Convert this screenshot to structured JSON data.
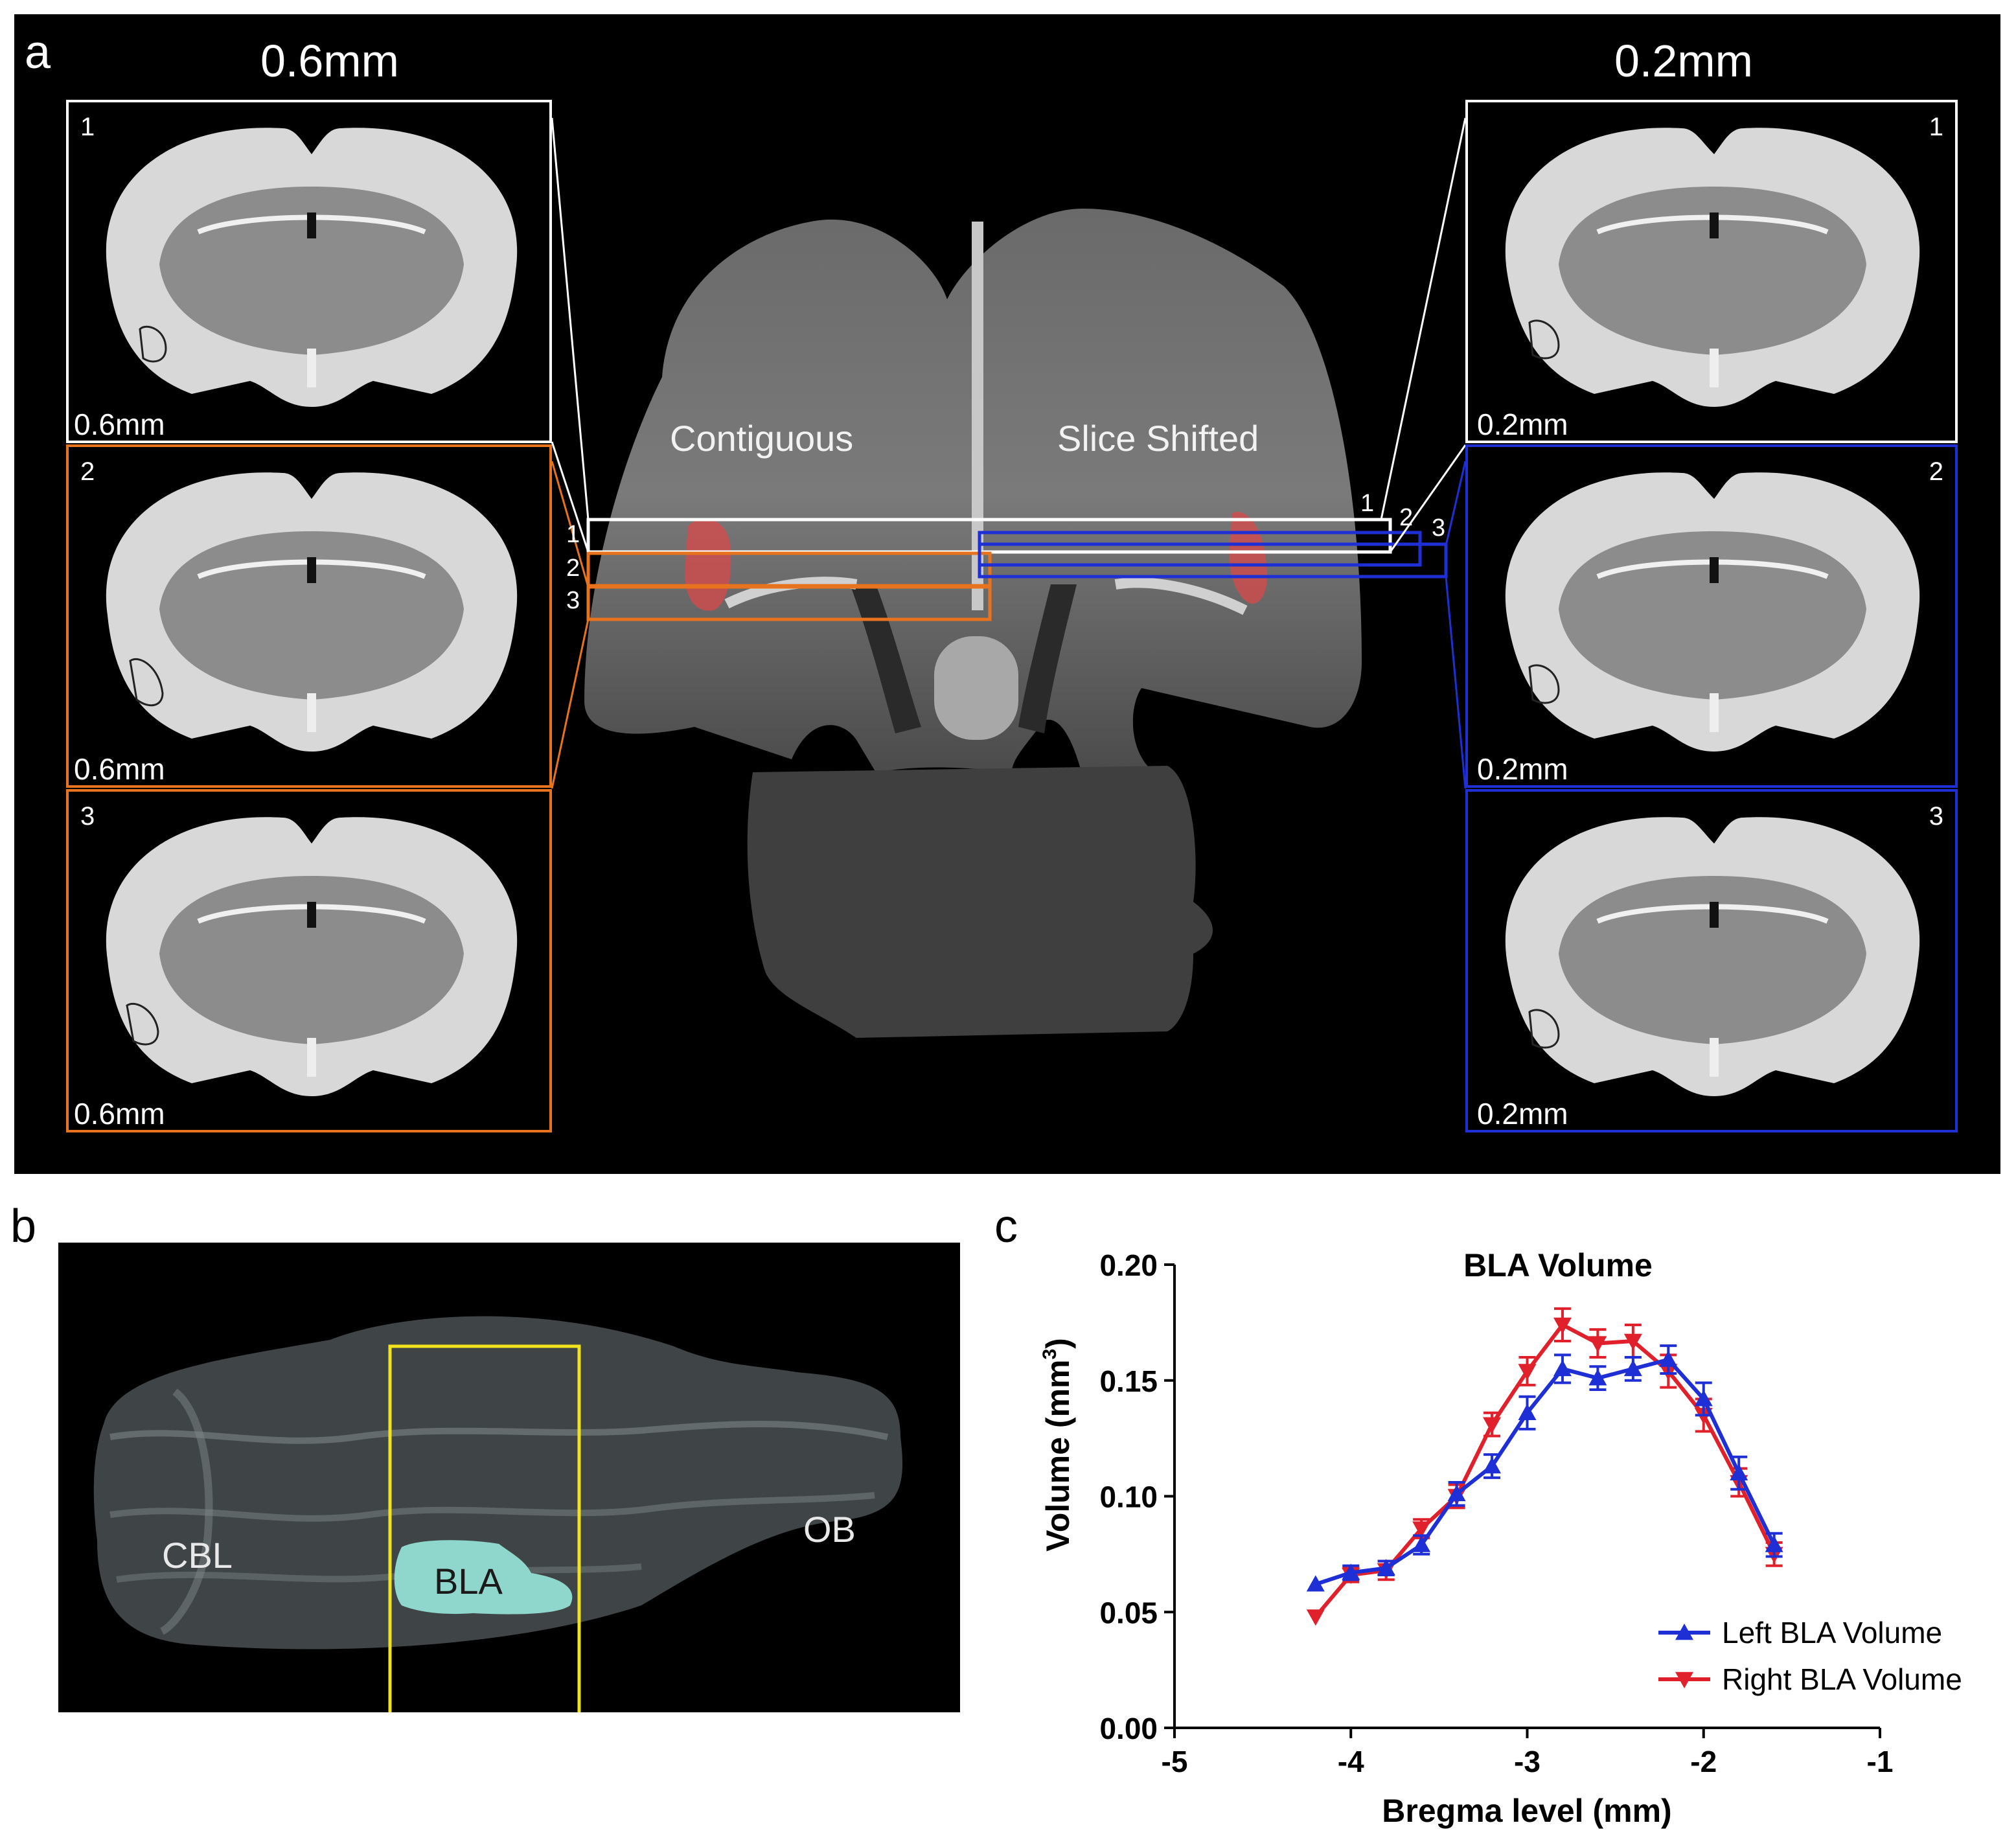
{
  "panel_letters": {
    "a": "a",
    "b": "b",
    "c": "c"
  },
  "panel_a": {
    "left_column_title": "0.6mm",
    "right_column_title": "0.2mm",
    "left_slices": [
      {
        "number": "1",
        "resolution": "0.6mm",
        "border_color": "#ffffff"
      },
      {
        "number": "2",
        "resolution": "0.6mm",
        "border_color": "#e8731e"
      },
      {
        "number": "3",
        "resolution": "0.6mm",
        "border_color": "#e8731e"
      }
    ],
    "right_slices": [
      {
        "number": "1",
        "resolution": "0.2mm",
        "border_color": "#ffffff"
      },
      {
        "number": "2",
        "resolution": "0.2mm",
        "border_color": "#1f2fd6"
      },
      {
        "number": "3",
        "resolution": "0.2mm",
        "border_color": "#1f2fd6"
      }
    ],
    "center_labels": {
      "contiguous": "Contiguous",
      "slice_shifted": "Slice Shifted"
    },
    "left_markers": [
      "1",
      "2",
      "3"
    ],
    "right_markers": [
      "1",
      "2",
      "3"
    ],
    "colors": {
      "white": "#ffffff",
      "orange": "#e8731e",
      "blue": "#1f2fd6",
      "bla_overlay": "#d94a4a"
    }
  },
  "panel_b": {
    "labels": {
      "cbl": "CBL",
      "bla": "BLA",
      "ob": "OB"
    },
    "colors": {
      "roi_box": "#f0e31c",
      "bla": "#8fd6cc"
    }
  },
  "chart_data": {
    "type": "line",
    "title": "BLA Volume",
    "xlabel": "Bregma level (mm)",
    "ylabel": "Volume (mm",
    "ylabel_superscript": "3",
    "ylabel_close": ")",
    "xlim": [
      -5,
      -1
    ],
    "ylim": [
      0,
      0.2
    ],
    "xticks": [
      -5,
      -4,
      -3,
      -2,
      -1
    ],
    "yticks": [
      0.0,
      0.05,
      0.1,
      0.15,
      0.2
    ],
    "xtick_labels": [
      "-5",
      "-4",
      "-3",
      "-2",
      "-1"
    ],
    "ytick_labels": [
      "0.00",
      "0.05",
      "0.10",
      "0.15",
      "0.20"
    ],
    "legend_position": "bottom-right",
    "series": [
      {
        "name": "Left BLA Volume",
        "color": "#1f2fd6",
        "marker": "triangle-up",
        "x": [
          -4.2,
          -4.0,
          -3.8,
          -3.6,
          -3.4,
          -3.2,
          -3.0,
          -2.8,
          -2.6,
          -2.4,
          -2.2,
          -2.0,
          -1.8,
          -1.6
        ],
        "y": [
          0.062,
          0.067,
          0.069,
          0.079,
          0.101,
          0.113,
          0.136,
          0.155,
          0.151,
          0.155,
          0.159,
          0.142,
          0.11,
          0.079
        ],
        "err": [
          0.0,
          0.003,
          0.003,
          0.004,
          0.005,
          0.005,
          0.007,
          0.006,
          0.005,
          0.005,
          0.006,
          0.007,
          0.007,
          0.005
        ]
      },
      {
        "name": "Right BLA Volume",
        "color": "#e0202a",
        "marker": "triangle-down",
        "x": [
          -4.2,
          -4.0,
          -3.8,
          -3.6,
          -3.4,
          -3.2,
          -3.0,
          -2.8,
          -2.6,
          -2.4,
          -2.2,
          -2.0,
          -1.8,
          -1.6
        ],
        "y": [
          0.048,
          0.066,
          0.068,
          0.086,
          0.1,
          0.131,
          0.154,
          0.174,
          0.166,
          0.167,
          0.154,
          0.135,
          0.106,
          0.075
        ],
        "err": [
          0.0,
          0.003,
          0.004,
          0.004,
          0.005,
          0.005,
          0.006,
          0.007,
          0.006,
          0.007,
          0.007,
          0.007,
          0.006,
          0.005
        ]
      }
    ]
  }
}
